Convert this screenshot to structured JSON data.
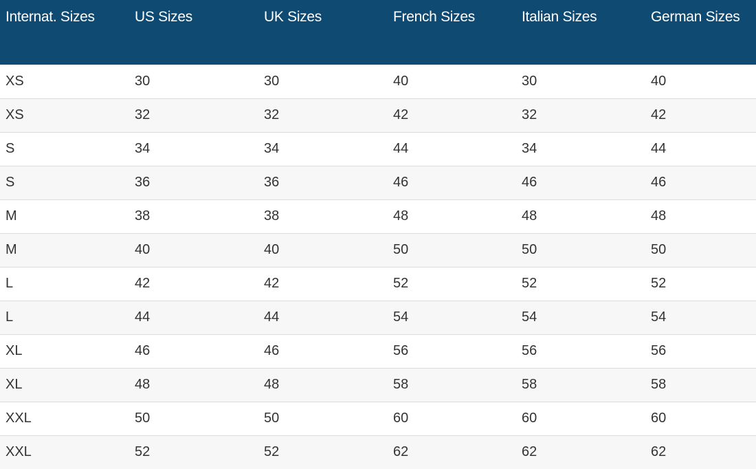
{
  "table": {
    "headers": [
      "Internat. Sizes",
      "US Sizes",
      "UK Sizes",
      "French Sizes",
      "Italian Sizes",
      "German Sizes"
    ],
    "rows": [
      [
        "XS",
        "30",
        "30",
        "40",
        "30",
        "40"
      ],
      [
        "XS",
        "32",
        "32",
        "42",
        "32",
        "42"
      ],
      [
        "S",
        "34",
        "34",
        "44",
        "34",
        "44"
      ],
      [
        "S",
        "36",
        "36",
        "46",
        "46",
        "46"
      ],
      [
        "M",
        "38",
        "38",
        "48",
        "48",
        "48"
      ],
      [
        "M",
        "40",
        "40",
        "50",
        "50",
        "50"
      ],
      [
        "L",
        "42",
        "42",
        "52",
        "52",
        "52"
      ],
      [
        "L",
        "44",
        "44",
        "54",
        "54",
        "54"
      ],
      [
        "XL",
        "46",
        "46",
        "56",
        "56",
        "56"
      ],
      [
        "XL",
        "48",
        "48",
        "58",
        "58",
        "58"
      ],
      [
        "XXL",
        "50",
        "50",
        "60",
        "60",
        "60"
      ],
      [
        "XXL",
        "52",
        "52",
        "62",
        "62",
        "62"
      ]
    ]
  },
  "colors": {
    "header_background": "#0f4a73",
    "header_text": "#ffffff",
    "row_alternate": "#f7f7f7",
    "body_text": "#333333"
  }
}
